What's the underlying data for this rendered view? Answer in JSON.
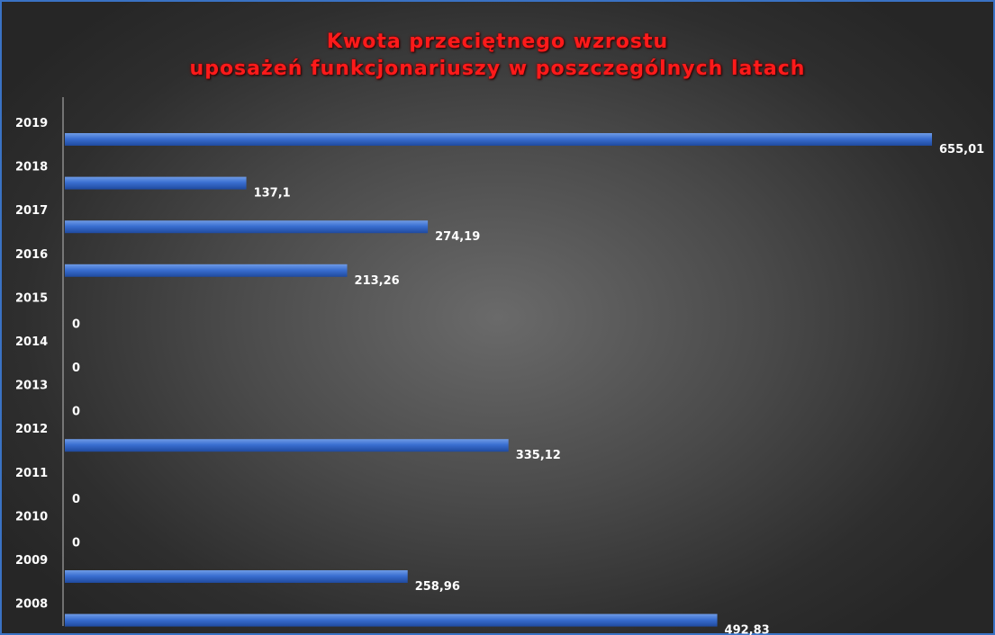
{
  "chart_data": {
    "type": "bar",
    "orientation": "horizontal",
    "title_line1": "Kwota przeciętnego wzrostu",
    "title_line2": "uposażeń funkcjonariuszy w poszczególnych latach",
    "xlabel": "",
    "ylabel": "",
    "grid": false,
    "legend": "none",
    "categories": [
      "2019",
      "2018",
      "2017",
      "2016",
      "2015",
      "2014",
      "2013",
      "2012",
      "2011",
      "2010",
      "2009",
      "2008"
    ],
    "values": [
      655.01,
      137.1,
      274.19,
      213.26,
      0,
      0,
      0,
      335.12,
      0,
      0,
      258.96,
      492.83
    ],
    "value_labels": [
      "655,01",
      "137,1",
      "274,19",
      "213,26",
      "0",
      "0",
      "0",
      "335,12",
      "0",
      "0",
      "258,96",
      "492,83"
    ],
    "xlim": [
      0,
      655.01
    ],
    "colors": {
      "bar": "#3a6fd1",
      "title": "#ff1a1a",
      "text": "#ffffff",
      "axis": "#bbbbbb"
    }
  }
}
